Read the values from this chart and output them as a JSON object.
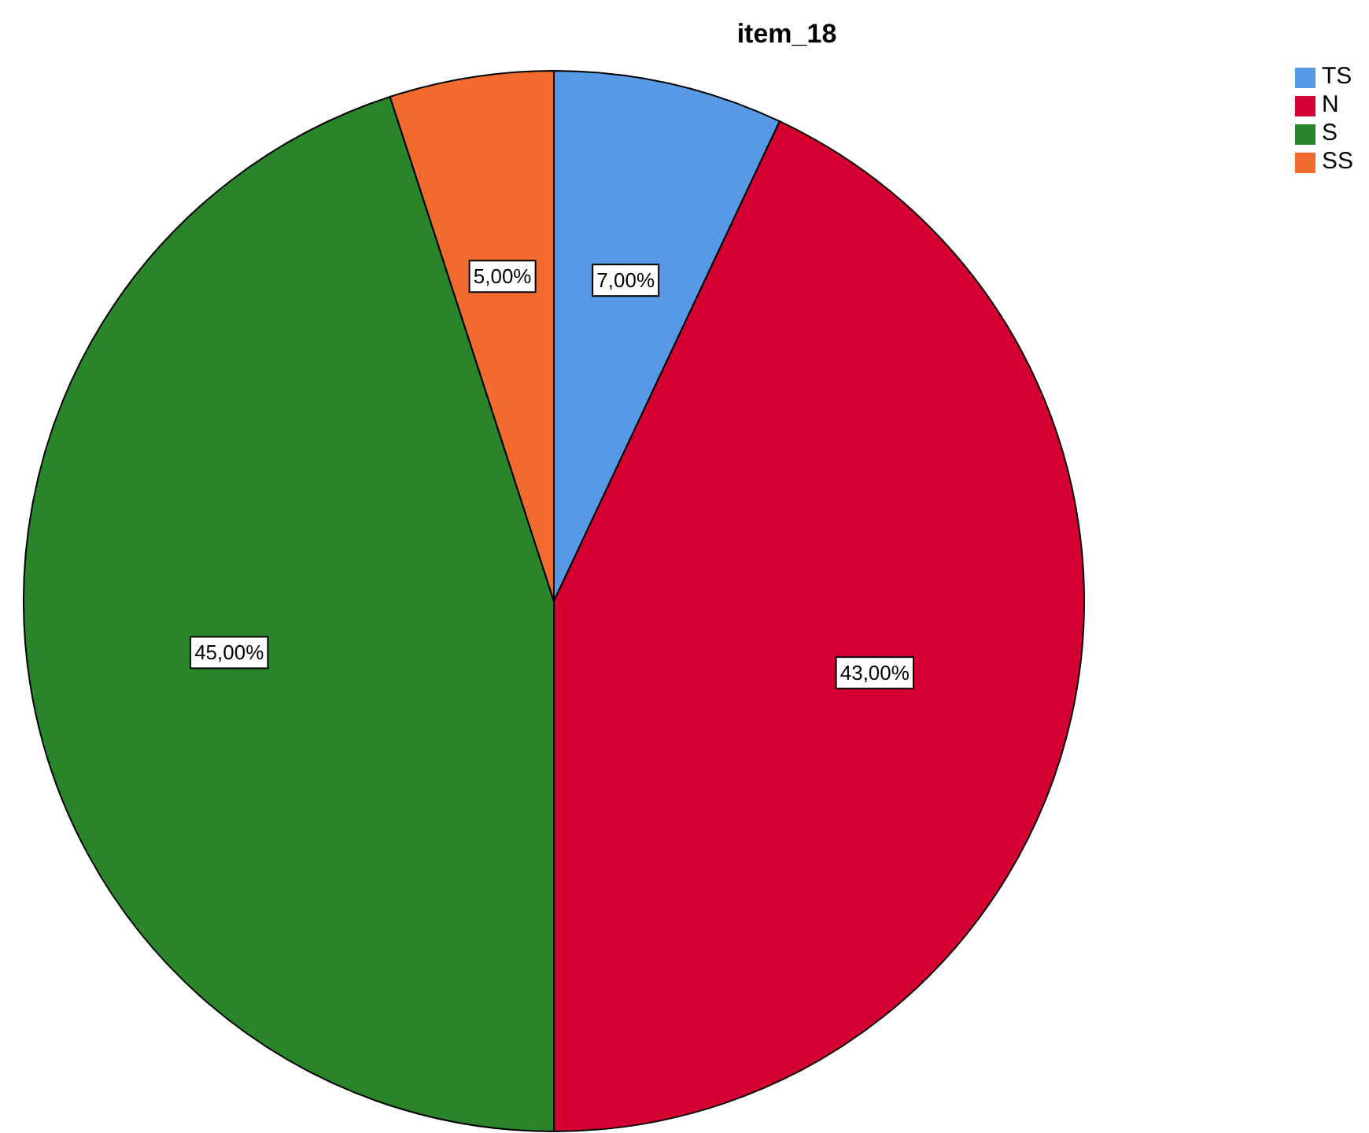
{
  "chart_data": {
    "type": "pie",
    "title": "item_18",
    "categories": [
      "TS",
      "N",
      "S",
      "SS"
    ],
    "values": [
      7,
      43,
      45,
      5
    ],
    "colors": [
      "#5899e6",
      "#d50032",
      "#2a8429",
      "#f26b2e"
    ],
    "value_labels": [
      "7,00%",
      "43,00%",
      "45,00%",
      "5,00%"
    ],
    "legend": "top right"
  }
}
